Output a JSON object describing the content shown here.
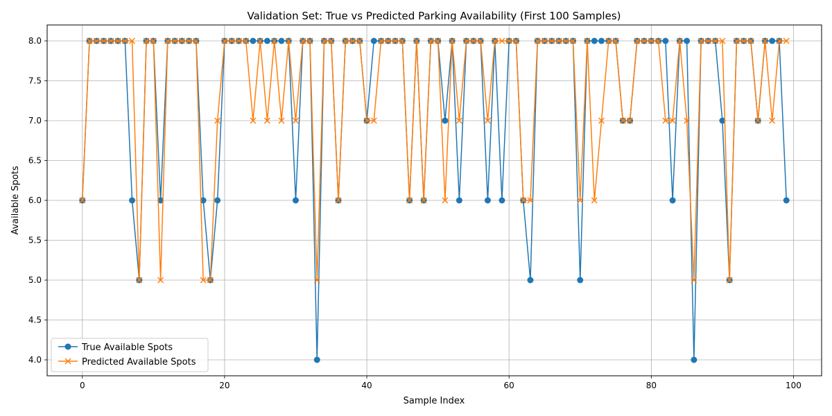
{
  "chart_data": {
    "type": "line",
    "title": "Validation Set: True vs Predicted Parking Availability (First 100 Samples)",
    "xlabel": "Sample Index",
    "ylabel": "Available Spots",
    "xlim": [
      -4.95,
      103.95
    ],
    "ylim": [
      3.8,
      8.2
    ],
    "xticks": [
      0,
      20,
      40,
      60,
      80,
      100
    ],
    "yticks": [
      4.0,
      4.5,
      5.0,
      5.5,
      6.0,
      6.5,
      7.0,
      7.5,
      8.0
    ],
    "grid": true,
    "legend_position": "lower-left",
    "series": [
      {
        "name": "True Available Spots",
        "color": "#1f77b4",
        "marker": "circle",
        "values": [
          6,
          8,
          8,
          8,
          8,
          8,
          8,
          6,
          5,
          8,
          8,
          6,
          8,
          8,
          8,
          8,
          8,
          6,
          5,
          6,
          8,
          8,
          8,
          8,
          8,
          8,
          8,
          8,
          8,
          8,
          6,
          8,
          8,
          4,
          8,
          8,
          6,
          8,
          8,
          8,
          7,
          8,
          8,
          8,
          8,
          8,
          6,
          8,
          6,
          8,
          8,
          7,
          8,
          6,
          8,
          8,
          8,
          6,
          8,
          6,
          8,
          8,
          6,
          5,
          8,
          8,
          8,
          8,
          8,
          8,
          5,
          8,
          8,
          8,
          8,
          8,
          7,
          7,
          8,
          8,
          8,
          8,
          8,
          6,
          8,
          8,
          4,
          8,
          8,
          8,
          7,
          5,
          8,
          8,
          8,
          7,
          8,
          8,
          8,
          6
        ]
      },
      {
        "name": "Predicted Available Spots",
        "color": "#ff7f0e",
        "marker": "x",
        "values": [
          6,
          8,
          8,
          8,
          8,
          8,
          8,
          8,
          5,
          8,
          8,
          5,
          8,
          8,
          8,
          8,
          8,
          5,
          5,
          7,
          8,
          8,
          8,
          8,
          7,
          8,
          7,
          8,
          7,
          8,
          7,
          8,
          8,
          5,
          8,
          8,
          6,
          8,
          8,
          8,
          7,
          7,
          8,
          8,
          8,
          8,
          6,
          8,
          6,
          8,
          8,
          6,
          8,
          7,
          8,
          8,
          8,
          7,
          8,
          8,
          8,
          8,
          6,
          6,
          8,
          8,
          8,
          8,
          8,
          8,
          6,
          8,
          6,
          7,
          8,
          8,
          7,
          7,
          8,
          8,
          8,
          8,
          7,
          7,
          8,
          7,
          5,
          8,
          8,
          8,
          8,
          5,
          8,
          8,
          8,
          7,
          8,
          7,
          8,
          8
        ]
      }
    ]
  }
}
